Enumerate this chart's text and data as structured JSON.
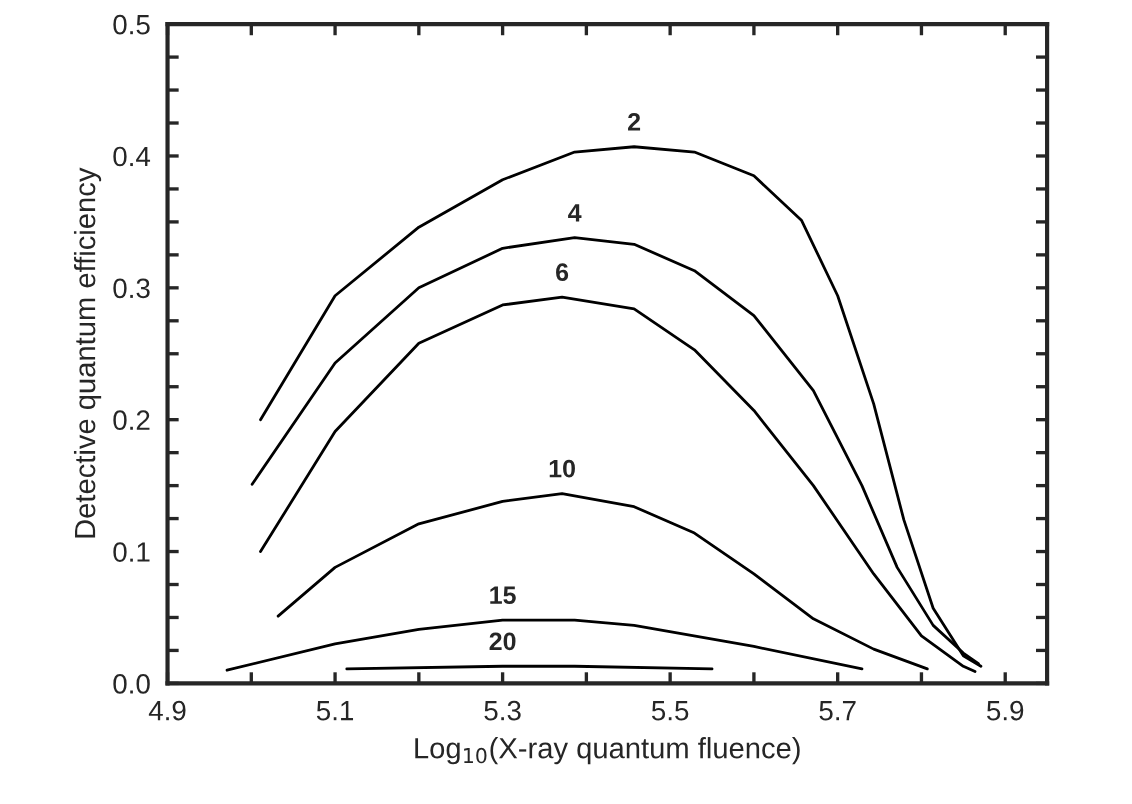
{
  "chart_data": {
    "type": "line",
    "xlabel": "Log$_{10}$(X-ray quantum fluence)",
    "ylabel": "Detective quantum efficiency",
    "xlim": [
      4.9,
      5.95
    ],
    "ylim": [
      0.0,
      0.5
    ],
    "xticks": [
      4.9,
      {
        "value": 5.0,
        "label": null
      },
      5.1,
      {
        "value": 5.2,
        "label": null
      },
      5.3,
      {
        "value": 5.4,
        "label": null
      },
      5.5,
      {
        "value": 5.6,
        "label": null
      },
      5.7,
      {
        "value": 5.8,
        "label": null
      },
      5.9
    ],
    "yticks": [
      {
        "value": 0.0,
        "label": "0.0"
      },
      {
        "value": 0.025,
        "label": null
      },
      {
        "value": 0.05,
        "label": null
      },
      {
        "value": 0.075,
        "label": null
      },
      0.1,
      {
        "value": 0.125,
        "label": null
      },
      {
        "value": 0.15,
        "label": null
      },
      {
        "value": 0.175,
        "label": null
      },
      0.2,
      {
        "value": 0.225,
        "label": null
      },
      {
        "value": 0.25,
        "label": null
      },
      {
        "value": 0.275,
        "label": null
      },
      0.3,
      {
        "value": 0.325,
        "label": null
      },
      {
        "value": 0.35,
        "label": null
      },
      {
        "value": 0.375,
        "label": null
      },
      0.4,
      {
        "value": 0.425,
        "label": null
      },
      {
        "value": 0.45,
        "label": null
      },
      {
        "value": 0.475,
        "label": null
      },
      0.5
    ],
    "grid": false,
    "legend": false,
    "marker": "none",
    "line_style": "solid",
    "series": [
      {
        "name": "2",
        "color": "#000000",
        "x": [
          5.011,
          5.1,
          5.2,
          5.3,
          5.386,
          5.457,
          5.529,
          5.6,
          5.657,
          5.7,
          5.743,
          5.779,
          5.814,
          5.85,
          5.871
        ],
        "values": [
          0.2,
          0.294,
          0.346,
          0.382,
          0.403,
          0.407,
          0.403,
          0.385,
          0.351,
          0.294,
          0.212,
          0.124,
          0.057,
          0.021,
          0.013
        ]
      },
      {
        "name": "4",
        "color": "#000000",
        "x": [
          5.001,
          5.1,
          5.2,
          5.3,
          5.386,
          5.457,
          5.529,
          5.6,
          5.671,
          5.729,
          5.771,
          5.814,
          5.85,
          5.868
        ],
        "values": [
          0.151,
          0.243,
          0.3,
          0.33,
          0.338,
          0.333,
          0.313,
          0.279,
          0.222,
          0.15,
          0.088,
          0.044,
          0.023,
          0.015
        ]
      },
      {
        "name": "6",
        "color": "#000000",
        "x": [
          5.011,
          5.1,
          5.2,
          5.3,
          5.371,
          5.457,
          5.529,
          5.6,
          5.671,
          5.743,
          5.8,
          5.85,
          5.864
        ],
        "values": [
          0.1,
          0.191,
          0.258,
          0.287,
          0.293,
          0.284,
          0.253,
          0.207,
          0.15,
          0.083,
          0.036,
          0.013,
          0.009
        ]
      },
      {
        "name": "10",
        "color": "#000000",
        "x": [
          5.032,
          5.1,
          5.2,
          5.3,
          5.371,
          5.457,
          5.529,
          5.6,
          5.671,
          5.743,
          5.807
        ],
        "values": [
          0.051,
          0.088,
          0.121,
          0.138,
          0.144,
          0.134,
          0.114,
          0.083,
          0.049,
          0.026,
          0.011
        ]
      },
      {
        "name": "15",
        "color": "#000000",
        "x": [
          4.971,
          5.1,
          5.2,
          5.3,
          5.386,
          5.457,
          5.6,
          5.729
        ],
        "values": [
          0.01,
          0.03,
          0.041,
          0.048,
          0.048,
          0.044,
          0.028,
          0.011
        ]
      },
      {
        "name": "20",
        "color": "#000000",
        "x": [
          5.114,
          5.3,
          5.386,
          5.55
        ],
        "values": [
          0.011,
          0.013,
          0.013,
          0.011
        ]
      }
    ]
  }
}
